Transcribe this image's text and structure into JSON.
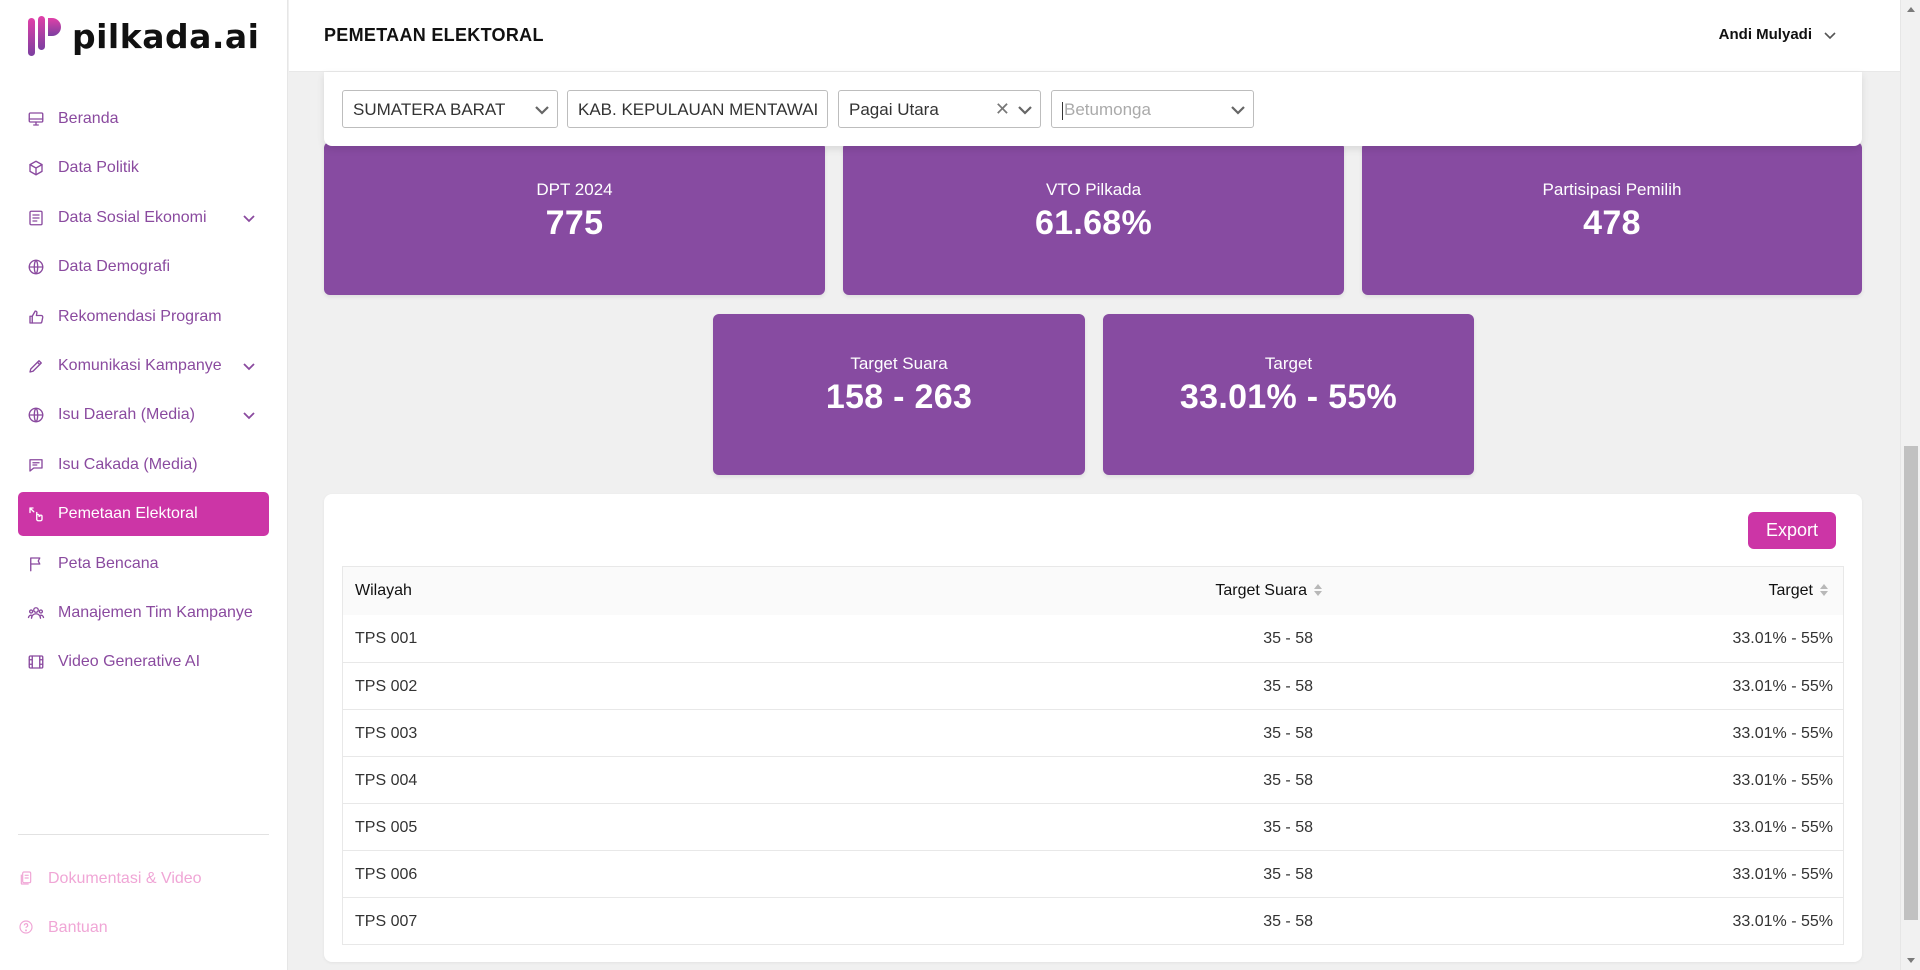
{
  "brand": {
    "name": "pilkada.ai",
    "accent": "#cc35a6",
    "card_color": "#874ba1"
  },
  "header": {
    "title": "PEMETAAN ELEKTORAL",
    "user_name": "Andi Mulyadi"
  },
  "sidebar": {
    "items": [
      {
        "label": "Beranda",
        "icon": "monitor-icon"
      },
      {
        "label": "Data Politik",
        "icon": "cube-icon"
      },
      {
        "label": "Data Sosial Ekonomi",
        "icon": "document-icon",
        "expandable": true
      },
      {
        "label": "Data Demografi",
        "icon": "globe-icon"
      },
      {
        "label": "Rekomendasi Program",
        "icon": "thumbs-up-icon"
      },
      {
        "label": "Komunikasi Kampanye",
        "icon": "pencil-icon",
        "expandable": true
      },
      {
        "label": "Isu Daerah (Media)",
        "icon": "globe-icon",
        "expandable": true
      },
      {
        "label": "Isu Cakada (Media)",
        "icon": "chat-icon"
      },
      {
        "label": "Pemetaan Elektoral",
        "icon": "map-pointer-icon",
        "active": true
      },
      {
        "label": "Peta Bencana",
        "icon": "flag-icon"
      },
      {
        "label": "Manajemen Tim Kampanye",
        "icon": "team-icon"
      },
      {
        "label": "Video Generative AI",
        "icon": "film-icon"
      }
    ],
    "footer": [
      {
        "label": "Dokumentasi & Video",
        "icon": "docs-icon"
      },
      {
        "label": "Bantuan",
        "icon": "help-icon"
      }
    ]
  },
  "filters": {
    "province": "SUMATERA BARAT",
    "regency": "KAB. KEPULAUAN MENTAWAI",
    "district": "Pagai Utara",
    "village_placeholder": "Betumonga"
  },
  "stats": {
    "dpt": {
      "label": "DPT 2024",
      "value": "775"
    },
    "vto": {
      "label": "VTO Pilkada",
      "value": "61.68%"
    },
    "participation": {
      "label": "Partisipasi Pemilih",
      "value": "478"
    },
    "target_votes": {
      "label": "Target Suara",
      "value": "158 - 263"
    },
    "target": {
      "label": "Target",
      "value": "33.01% - 55%"
    }
  },
  "table": {
    "export_label": "Export",
    "columns": [
      "Wilayah",
      "Target Suara",
      "Target"
    ],
    "rows": [
      [
        "TPS 001",
        "35 - 58",
        "33.01% - 55%"
      ],
      [
        "TPS 002",
        "35 - 58",
        "33.01% - 55%"
      ],
      [
        "TPS 003",
        "35 - 58",
        "33.01% - 55%"
      ],
      [
        "TPS 004",
        "35 - 58",
        "33.01% - 55%"
      ],
      [
        "TPS 005",
        "35 - 58",
        "33.01% - 55%"
      ],
      [
        "TPS 006",
        "35 - 58",
        "33.01% - 55%"
      ],
      [
        "TPS 007",
        "35 - 58",
        "33.01% - 55%"
      ]
    ]
  }
}
